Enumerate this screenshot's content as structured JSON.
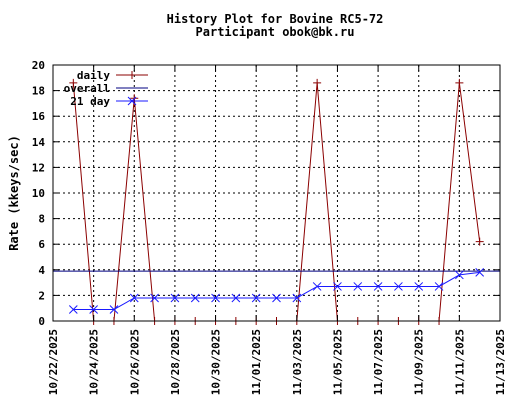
{
  "chart_data": {
    "type": "line",
    "title": [
      "History Plot for Bovine RC5-72",
      "Participant obok@bk.ru"
    ],
    "xlabel": "",
    "ylabel": "Rate (kkeys/sec)",
    "ylim": [
      0,
      20
    ],
    "yticks": [
      "0",
      "2",
      "4",
      "6",
      "8",
      "10",
      "12",
      "14",
      "16",
      "18",
      "20"
    ],
    "xlim": [
      "10/22/2025",
      "11/13/2025"
    ],
    "xticks": [
      "10/22/2025",
      "10/24/2025",
      "10/26/2025",
      "10/28/2025",
      "10/30/2025",
      "11/01/2025",
      "11/03/2025",
      "11/05/2025",
      "11/07/2025",
      "11/09/2025",
      "11/11/2025",
      "11/13/2025"
    ],
    "grid": true,
    "legend_position": "top-left",
    "series": [
      {
        "name": "daily",
        "color": "#8b0000",
        "marker": "+",
        "x": [
          "10/23/2025",
          "10/24/2025",
          "10/25/2025",
          "10/26/2025",
          "10/27/2025",
          "10/28/2025",
          "10/29/2025",
          "10/30/2025",
          "10/31/2025",
          "11/01/2025",
          "11/02/2025",
          "11/03/2025",
          "11/04/2025",
          "11/05/2025",
          "11/06/2025",
          "11/07/2025",
          "11/08/2025",
          "11/09/2025",
          "11/10/2025",
          "11/11/2025",
          "11/12/2025"
        ],
        "values": [
          18.6,
          0,
          0,
          17.4,
          0,
          0,
          0,
          0,
          0,
          0,
          0,
          0,
          18.6,
          0,
          0,
          0,
          0,
          0,
          0,
          18.6,
          6.2
        ]
      },
      {
        "name": "overall",
        "color": "#000080",
        "marker": "none",
        "x": [
          "10/22/2025",
          "11/13/2025"
        ],
        "values": [
          3.9,
          3.9
        ]
      },
      {
        "name": "21 day",
        "color": "#1a1aff",
        "marker": "x",
        "x": [
          "10/23/2025",
          "10/24/2025",
          "10/25/2025",
          "10/26/2025",
          "10/27/2025",
          "10/28/2025",
          "10/29/2025",
          "10/30/2025",
          "10/31/2025",
          "11/01/2025",
          "11/02/2025",
          "11/03/2025",
          "11/04/2025",
          "11/05/2025",
          "11/06/2025",
          "11/07/2025",
          "11/08/2025",
          "11/09/2025",
          "11/10/2025",
          "11/11/2025",
          "11/12/2025"
        ],
        "values": [
          0.9,
          0.9,
          0.9,
          1.8,
          1.8,
          1.8,
          1.8,
          1.8,
          1.8,
          1.8,
          1.8,
          1.8,
          2.7,
          2.7,
          2.7,
          2.7,
          2.7,
          2.7,
          2.7,
          3.6,
          3.8
        ]
      }
    ]
  }
}
